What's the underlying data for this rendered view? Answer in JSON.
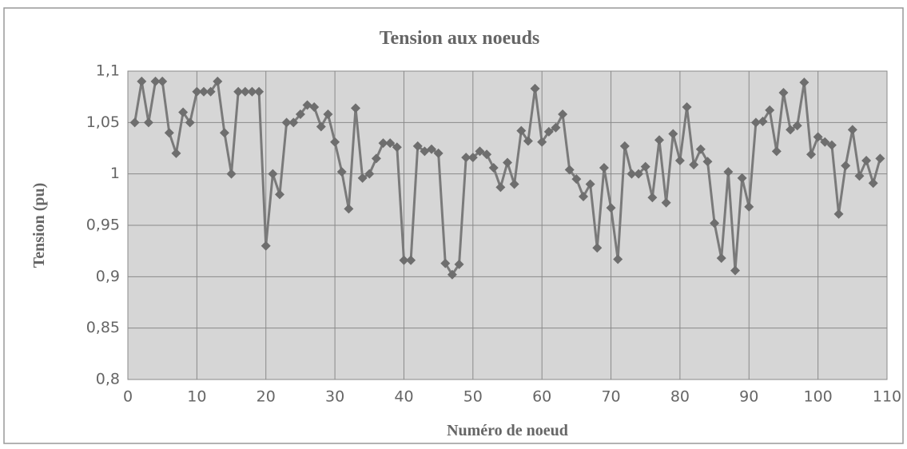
{
  "chart_data": {
    "type": "line",
    "title": "Tension aux noeuds",
    "xlabel": "Numéro de noeud",
    "ylabel": "Tension (pu)",
    "x": [
      1,
      2,
      3,
      4,
      5,
      6,
      7,
      8,
      9,
      10,
      11,
      12,
      13,
      14,
      15,
      16,
      17,
      18,
      19,
      20,
      21,
      22,
      23,
      24,
      25,
      26,
      27,
      28,
      29,
      30,
      31,
      32,
      33,
      34,
      35,
      36,
      37,
      38,
      39,
      40,
      41,
      42,
      43,
      44,
      45,
      46,
      47,
      48,
      49,
      50,
      51,
      52,
      53,
      54,
      55,
      56,
      57,
      58,
      59,
      60,
      61,
      62,
      63,
      64,
      65,
      66,
      67,
      68,
      69,
      70,
      71,
      72,
      73,
      74,
      75,
      76,
      77,
      78,
      79,
      80,
      81,
      82,
      83,
      84,
      85,
      86,
      87,
      88,
      89,
      90,
      91,
      92,
      93,
      94,
      95,
      96,
      97,
      98,
      99,
      100,
      101,
      102,
      103,
      104,
      105,
      106,
      107,
      108,
      109
    ],
    "series": [
      {
        "name": "Tension",
        "color": "#7a7a7a",
        "values": [
          1.05,
          1.09,
          1.05,
          1.09,
          1.09,
          1.04,
          1.02,
          1.06,
          1.05,
          1.08,
          1.08,
          1.08,
          1.09,
          1.04,
          1.0,
          1.08,
          1.08,
          1.08,
          1.08,
          0.93,
          1.0,
          0.98,
          1.05,
          1.05,
          1.058,
          1.067,
          1.065,
          1.046,
          1.058,
          1.031,
          1.002,
          0.966,
          1.064,
          0.996,
          1.0,
          1.015,
          1.03,
          1.03,
          1.026,
          0.916,
          0.916,
          1.027,
          1.022,
          1.024,
          1.02,
          0.913,
          0.902,
          0.912,
          1.016,
          1.016,
          1.022,
          1.019,
          1.006,
          0.987,
          1.011,
          0.99,
          1.042,
          1.032,
          1.083,
          1.031,
          1.041,
          1.045,
          1.058,
          1.004,
          0.995,
          0.978,
          0.99,
          0.928,
          1.006,
          0.967,
          0.917,
          1.027,
          1.0,
          1.0,
          1.007,
          0.977,
          1.033,
          0.972,
          1.039,
          1.013,
          1.065,
          1.009,
          1.024,
          1.012,
          0.952,
          0.918,
          1.002,
          0.906,
          0.996,
          0.968,
          1.05,
          1.051,
          1.062,
          1.022,
          1.079,
          1.043,
          1.047,
          1.089,
          1.019,
          1.036,
          1.031,
          1.028,
          0.961,
          1.008,
          1.043,
          0.998,
          1.013,
          0.991,
          1.015
        ]
      }
    ],
    "xlim": [
      0,
      110
    ],
    "xticks": [
      0,
      10,
      20,
      30,
      40,
      50,
      60,
      70,
      80,
      90,
      100,
      110
    ],
    "ylim": [
      0.8,
      1.1
    ],
    "yticks": [
      {
        "value": 0.8,
        "label": "0,8"
      },
      {
        "value": 0.85,
        "label": "0,85"
      },
      {
        "value": 0.9,
        "label": "0,9"
      },
      {
        "value": 0.95,
        "label": "0,95"
      },
      {
        "value": 1,
        "label": "1"
      },
      {
        "value": 1.05,
        "label": "1,05"
      },
      {
        "value": 1.1,
        "label": "1,1"
      }
    ],
    "grid": true,
    "plot_background": "#d6d6d6"
  }
}
